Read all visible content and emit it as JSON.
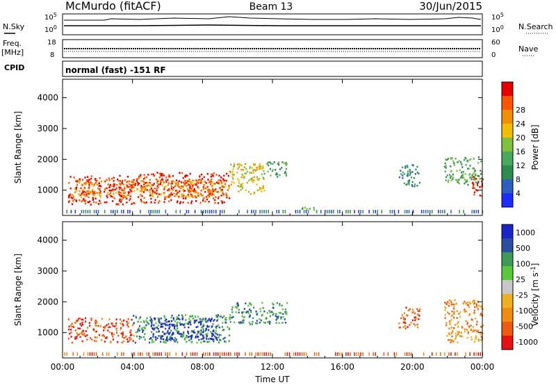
{
  "header": {
    "station": "McMurdo (fitACF)",
    "beam": "Beam 13",
    "date": "30/Jun/2015"
  },
  "top_panel": {
    "left_labels": {
      "nsky": "N.Sky",
      "freq": "Freq.",
      "freq_unit": "[MHz]",
      "cpid": "CPID"
    },
    "right_labels": {
      "nsearch": "N.Search",
      "nave": "Nave"
    },
    "noise_ticks": {
      "top": "10^5",
      "bottom": "10^0"
    },
    "freq_ticks": [
      "18",
      "8"
    ],
    "nave_ticks": [
      "60",
      "0"
    ],
    "cpid_text": "normal (fast) -151 RF"
  },
  "colors": {
    "power_scale": [
      "#1a2cff",
      "#2c5fbf",
      "#2f8a4f",
      "#48a85c",
      "#7fc03f",
      "#f0c000",
      "#f09000",
      "#ff5500",
      "#e80000"
    ],
    "velocity_scale": [
      "#e81010",
      "#f05a10",
      "#f08c10",
      "#f0b020",
      "#c8c8c8",
      "#5ac83c",
      "#3f9a55",
      "#2a4fa0",
      "#1a24c8"
    ]
  },
  "chart_data": [
    {
      "type": "heatmap",
      "title": "Power",
      "ylabel": "Slant Range [km]",
      "xlabel": "",
      "x_ticks": [
        "00:00",
        "04:00",
        "08:00",
        "12:00",
        "16:00",
        "20:00",
        "00:00"
      ],
      "y_ticks": [
        "1000",
        "2000",
        "3000",
        "4000"
      ],
      "ylim": [
        180,
        4600
      ],
      "xlim_hours": [
        0,
        24
      ],
      "colorbar_label": "Power [dB]",
      "colorbar_ticks": [
        "4",
        "8",
        "12",
        "16",
        "20",
        "24",
        "28"
      ],
      "scatter_regions": [
        {
          "t0": 0.3,
          "t1": 4.0,
          "r0": 550,
          "r1": 1500,
          "level": 8
        },
        {
          "t0": 4.0,
          "t1": 9.5,
          "r0": 600,
          "r1": 1600,
          "level": 8
        },
        {
          "t0": 0.5,
          "t1": 9.5,
          "r0": 800,
          "r1": 1350,
          "level": 6
        },
        {
          "t0": 9.5,
          "t1": 11.5,
          "r0": 900,
          "r1": 1900,
          "level": 5
        },
        {
          "t0": 11.5,
          "t1": 12.8,
          "r0": 1450,
          "r1": 1950,
          "level": 3
        },
        {
          "t0": 13.5,
          "t1": 14.8,
          "r0": 380,
          "r1": 470,
          "level": 3
        },
        {
          "t0": 19.2,
          "t1": 20.4,
          "r0": 1150,
          "r1": 1850,
          "level": 2
        },
        {
          "t0": 21.8,
          "t1": 24.0,
          "r0": 1200,
          "r1": 2100,
          "level": 3
        },
        {
          "t0": 23.4,
          "t1": 24.0,
          "r0": 800,
          "r1": 1500,
          "level": 8
        }
      ]
    },
    {
      "type": "heatmap",
      "title": "Velocity",
      "ylabel": "Slant Range [km]",
      "xlabel": "Time UT",
      "x_ticks": [
        "00:00",
        "04:00",
        "08:00",
        "12:00",
        "16:00",
        "20:00",
        "00:00"
      ],
      "y_ticks": [
        "1000",
        "2000",
        "3000",
        "4000"
      ],
      "ylim": [
        180,
        4600
      ],
      "xlim_hours": [
        0,
        24
      ],
      "colorbar_label": "Velocity [m s^-1]",
      "colorbar_ticks": [
        "1000",
        "500",
        "100",
        "25",
        "-25",
        "-100",
        "-500",
        "-1000"
      ],
      "scatter_regions": [
        {
          "t0": 0.3,
          "t1": 4.0,
          "r0": 700,
          "r1": 1500,
          "level": 1
        },
        {
          "t0": 4.0,
          "t1": 9.5,
          "r0": 700,
          "r1": 1600,
          "level": 6
        },
        {
          "t0": 5.0,
          "t1": 8.8,
          "r0": 800,
          "r1": 1500,
          "level": 8
        },
        {
          "t0": 9.5,
          "t1": 12.8,
          "r0": 1300,
          "r1": 2000,
          "level": 6
        },
        {
          "t0": 19.2,
          "t1": 20.4,
          "r0": 1150,
          "r1": 1850,
          "level": 1
        },
        {
          "t0": 21.8,
          "t1": 24.0,
          "r0": 700,
          "r1": 2100,
          "level": 2
        }
      ]
    }
  ]
}
